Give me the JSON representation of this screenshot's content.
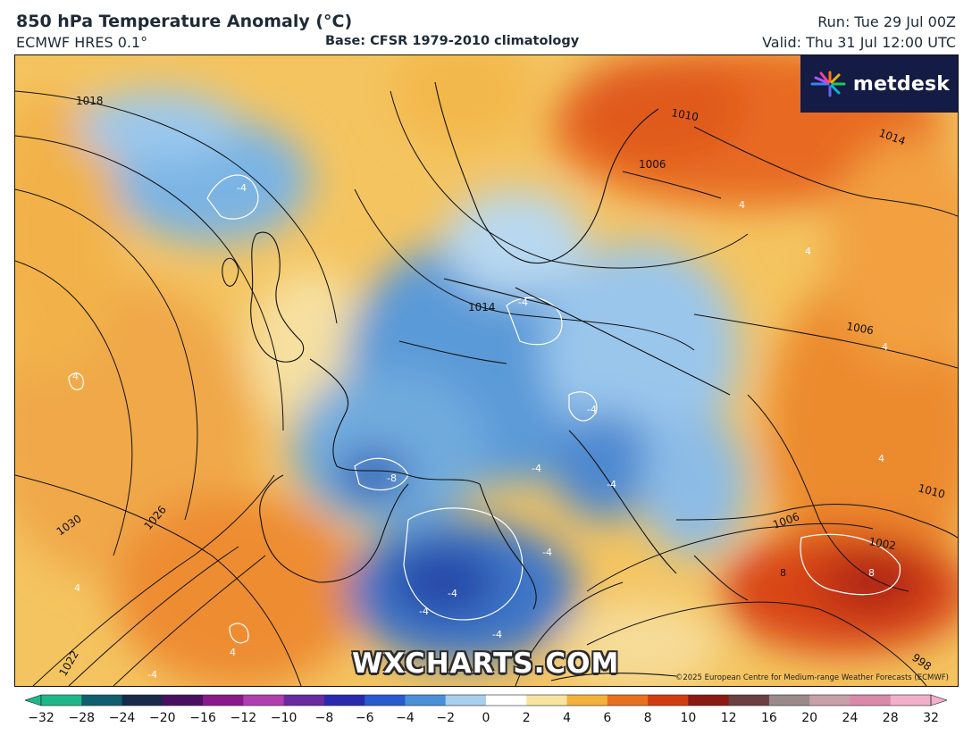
{
  "header": {
    "title": "850 hPa Temperature Anomaly (°C)",
    "model": "ECMWF HRES 0.1°",
    "base": "Base: CFSR 1979-2010 climatology",
    "run": "Run: Tue 29 Jul 00Z",
    "valid": "Valid: Thu 31 Jul 12:00 UTC"
  },
  "logo": {
    "text": "metdesk"
  },
  "watermark": "WXCHARTS.COM",
  "copyright": "©2025 European Centre for Medium-range Weather Forecasts (ECMWF)",
  "isobar_labels": [
    "1018",
    "1010",
    "1014",
    "1006",
    "1014",
    "1006",
    "1030",
    "1026",
    "1022",
    "1006",
    "1002",
    "1010",
    "998"
  ],
  "anomaly_labels": [
    "-4",
    "-4",
    "-4",
    "-4",
    "-4",
    "-8",
    "-4",
    "-4",
    "-4",
    "-4",
    "-4",
    "4",
    "4",
    "4",
    "4",
    "4",
    "4",
    "4",
    "8",
    "8"
  ],
  "colorbar": {
    "ticks": [
      "-32",
      "-28",
      "-24",
      "-20",
      "-16",
      "-12",
      "-10",
      "-8",
      "-6",
      "-4",
      "-2",
      "0",
      "2",
      "4",
      "6",
      "8",
      "10",
      "12",
      "16",
      "20",
      "24",
      "28",
      "32"
    ],
    "colors": [
      "#1db88a",
      "#0f5f6f",
      "#1a2a4a",
      "#4a1060",
      "#8a1a8a",
      "#b040b0",
      "#6a2aa0",
      "#2a2ab0",
      "#2a5ad0",
      "#4a90d8",
      "#a8cfee",
      "#ffffff",
      "#f6e4a0",
      "#f3b23c",
      "#e8701e",
      "#d23c10",
      "#8a1a12",
      "#6a4040",
      "#9a8a8a",
      "#c8a0a8",
      "#d88aa8",
      "#f0b0c8"
    ]
  }
}
